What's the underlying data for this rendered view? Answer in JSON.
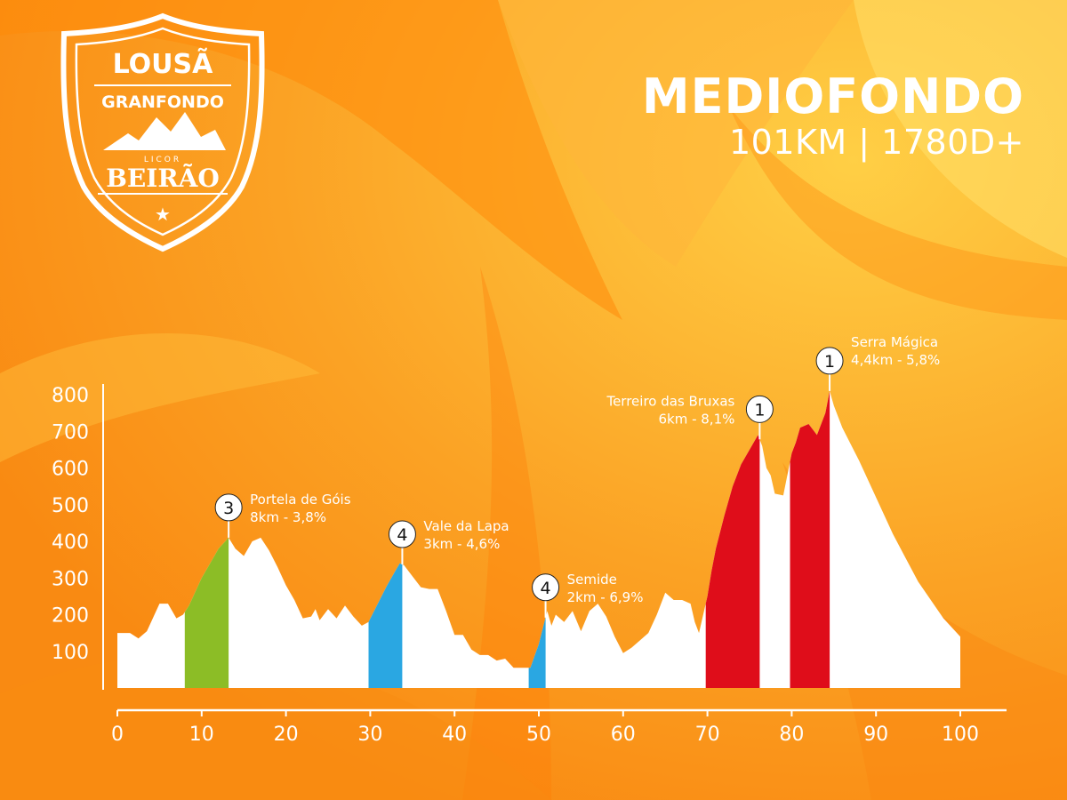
{
  "brand": {
    "line1": "LOUSÃ",
    "line2": "GRANFONDO",
    "line3": "LICOR",
    "line4": "BEIRÃO"
  },
  "header": {
    "title": "MEDIOFONDO",
    "subtitle": "101KM | 1780D+"
  },
  "colors": {
    "background": "#fb9a1c",
    "profile": "#ffffff",
    "cat3": "#8cbd26",
    "cat4": "#2aa7e2",
    "cat1": "#df0d1a"
  },
  "chart_data": {
    "type": "area",
    "xlim": [
      0,
      100
    ],
    "ylim": [
      0,
      800
    ],
    "x_ticks": [
      0,
      10,
      20,
      30,
      40,
      50,
      60,
      70,
      80,
      90,
      100
    ],
    "y_ticks": [
      100,
      200,
      300,
      400,
      500,
      600,
      700,
      800
    ],
    "profile": {
      "x": [
        0,
        1.5,
        2.5,
        3.5,
        5,
        6,
        7,
        7.8,
        8.5,
        10,
        12,
        13.2,
        14,
        15,
        16,
        17,
        18,
        19,
        20,
        21,
        22,
        23,
        23.5,
        24,
        25,
        26,
        27,
        28,
        29,
        29.8,
        31,
        32,
        33,
        33.5,
        34,
        35,
        36,
        37,
        38,
        39,
        40,
        41,
        42,
        43,
        44,
        45,
        46,
        47,
        48,
        49,
        50,
        51,
        51.5,
        52,
        53,
        54,
        55,
        56,
        57,
        58,
        59,
        60,
        61,
        62,
        63,
        64,
        65,
        66,
        67,
        68,
        68.5,
        69,
        70,
        70.5,
        71,
        72,
        73,
        74,
        75,
        76,
        76.5,
        77,
        77.5,
        78,
        79,
        80,
        80.5,
        81,
        82,
        83,
        84,
        84.5,
        85,
        86,
        88,
        90,
        92,
        95,
        98,
        100
      ],
      "elevation": [
        150,
        150,
        135,
        155,
        230,
        230,
        190,
        200,
        225,
        300,
        380,
        410,
        380,
        360,
        400,
        410,
        375,
        330,
        280,
        240,
        190,
        195,
        215,
        185,
        215,
        190,
        225,
        195,
        170,
        180,
        235,
        280,
        320,
        340,
        335,
        305,
        275,
        270,
        270,
        210,
        145,
        145,
        105,
        90,
        90,
        75,
        80,
        55,
        55,
        55,
        120,
        210,
        170,
        200,
        180,
        210,
        155,
        210,
        230,
        195,
        140,
        95,
        110,
        130,
        150,
        200,
        260,
        240,
        240,
        230,
        180,
        150,
        250,
        320,
        380,
        470,
        550,
        610,
        650,
        690,
        660,
        600,
        580,
        530,
        525,
        640,
        670,
        710,
        720,
        690,
        750,
        810,
        770,
        710,
        620,
        520,
        420,
        290,
        190,
        140
      ]
    },
    "climbs": [
      {
        "category": "3",
        "name": "Portela de Góis",
        "detail": "8km - 3,8%",
        "x_start": 8,
        "x_end": 13.2,
        "peak_elevation": 410,
        "color": "#8cbd26"
      },
      {
        "category": "4",
        "name": "Vale da Lapa",
        "detail": "3km - 4,6%",
        "x_start": 29.8,
        "x_end": 33.8,
        "peak_elevation": 340,
        "color": "#2aa7e2"
      },
      {
        "category": "4",
        "name": "Semide",
        "detail": "2km - 6,9%",
        "x_start": 48.8,
        "x_end": 50.8,
        "peak_elevation": 210,
        "color": "#2aa7e2"
      },
      {
        "category": "1",
        "name": "Terreiro das Bruxas",
        "detail": "6km - 8,1%",
        "x_start": 69.8,
        "x_end": 76.2,
        "peak_elevation": 690,
        "color": "#df0d1a"
      },
      {
        "category": "1",
        "name": "Serra Mágica",
        "detail": "4,4km - 5,8%",
        "x_start": 79.8,
        "x_end": 84.5,
        "peak_elevation": 810,
        "color": "#df0d1a"
      }
    ]
  }
}
